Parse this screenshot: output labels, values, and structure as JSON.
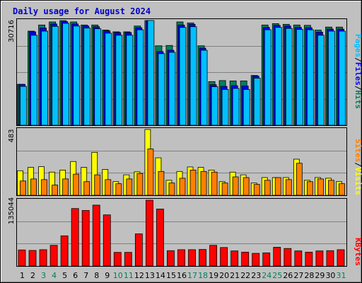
{
  "title": "Daily usage for August 2024",
  "colors": {
    "background": "#c0c0c0",
    "frame": "#ffffff",
    "title": "#0000c8",
    "hits": "#00805c",
    "files": "#0000ff",
    "pages": "#00c0ff",
    "visits": "#ffff00",
    "sites": "#ff8000",
    "kbytes": "#ff0000",
    "weekend_label": "#00805c",
    "weekday_label": "#000000"
  },
  "legend": {
    "top": [
      "Pages",
      "/",
      "Files",
      "/",
      "Hits"
    ],
    "middle": [
      "Sites",
      "/",
      "Visits"
    ],
    "bottom": [
      "KBytes"
    ]
  },
  "chart_data": [
    {
      "type": "bar",
      "panel": "hits-files-pages",
      "ymax_label": "30716",
      "ylim": [
        0,
        30716
      ],
      "categories": [
        "1",
        "2",
        "3",
        "4",
        "5",
        "6",
        "7",
        "8",
        "9",
        "10",
        "11",
        "12",
        "13",
        "14",
        "15",
        "16",
        "17",
        "18",
        "19",
        "20",
        "21",
        "22",
        "23",
        "24",
        "25",
        "26",
        "27",
        "28",
        "29",
        "30",
        "31"
      ],
      "weekend_days": [
        "3",
        "4",
        "10",
        "11",
        "17",
        "18",
        "24",
        "25",
        "31"
      ],
      "series": [
        {
          "name": "Hits",
          "values": [
            12000,
            27600,
            29400,
            30300,
            30700,
            30300,
            29400,
            29400,
            27900,
            27400,
            27400,
            29100,
            30716,
            23300,
            23400,
            30300,
            30000,
            23300,
            12800,
            13100,
            13000,
            13000,
            14600,
            29400,
            29800,
            29600,
            29400,
            29300,
            27900,
            28800,
            28800
          ]
        },
        {
          "name": "Files",
          "values": [
            12000,
            27400,
            28500,
            29700,
            30400,
            29700,
            29100,
            28900,
            27700,
            27200,
            27200,
            28600,
            30716,
            21600,
            22000,
            29400,
            29600,
            22600,
            11900,
            11400,
            11600,
            11500,
            14400,
            28700,
            29300,
            29100,
            28700,
            28600,
            27300,
            28200,
            28200
          ]
        },
        {
          "name": "Pages",
          "values": [
            11400,
            26400,
            27600,
            29000,
            29900,
            29100,
            28500,
            28300,
            27000,
            26400,
            26400,
            28000,
            30716,
            21000,
            21400,
            28700,
            28900,
            22000,
            11300,
            10500,
            10800,
            10500,
            13800,
            28000,
            28700,
            28400,
            28100,
            28000,
            26400,
            27600,
            27600
          ]
        }
      ]
    },
    {
      "type": "bar",
      "panel": "visits-sites",
      "ymax_label": "483",
      "ylim": [
        0,
        483
      ],
      "categories": [
        "1",
        "2",
        "3",
        "4",
        "5",
        "6",
        "7",
        "8",
        "9",
        "10",
        "11",
        "12",
        "13",
        "14",
        "15",
        "16",
        "17",
        "18",
        "19",
        "20",
        "21",
        "22",
        "23",
        "24",
        "25",
        "26",
        "27",
        "28",
        "29",
        "30",
        "31"
      ],
      "series": [
        {
          "name": "Visits",
          "values": [
            180,
            205,
            210,
            170,
            185,
            248,
            205,
            315,
            190,
            100,
            150,
            172,
            483,
            275,
            110,
            175,
            208,
            205,
            185,
            100,
            170,
            150,
            90,
            130,
            130,
            130,
            265,
            110,
            130,
            125,
            100
          ]
        },
        {
          "name": "Sites",
          "values": [
            105,
            120,
            115,
            75,
            120,
            155,
            100,
            150,
            115,
            85,
            120,
            160,
            340,
            175,
            90,
            125,
            185,
            175,
            170,
            90,
            135,
            130,
            80,
            110,
            130,
            115,
            235,
            100,
            120,
            110,
            85
          ]
        }
      ]
    },
    {
      "type": "bar",
      "panel": "kbytes",
      "ymax_label": "135044",
      "ylim": [
        0,
        135044
      ],
      "categories": [
        "1",
        "2",
        "3",
        "4",
        "5",
        "6",
        "7",
        "8",
        "9",
        "10",
        "11",
        "12",
        "13",
        "14",
        "15",
        "16",
        "17",
        "18",
        "19",
        "20",
        "21",
        "22",
        "23",
        "24",
        "25",
        "26",
        "27",
        "28",
        "29",
        "30",
        "31"
      ],
      "series": [
        {
          "name": "KBytes",
          "values": [
            33000,
            32000,
            33500,
            42500,
            62000,
            118000,
            114000,
            125000,
            105000,
            28000,
            28000,
            66000,
            135044,
            117000,
            31500,
            33500,
            33500,
            34000,
            42500,
            38000,
            31000,
            28500,
            26000,
            27000,
            38500,
            36000,
            31000,
            28500,
            31000,
            31500,
            33500
          ]
        }
      ]
    }
  ]
}
